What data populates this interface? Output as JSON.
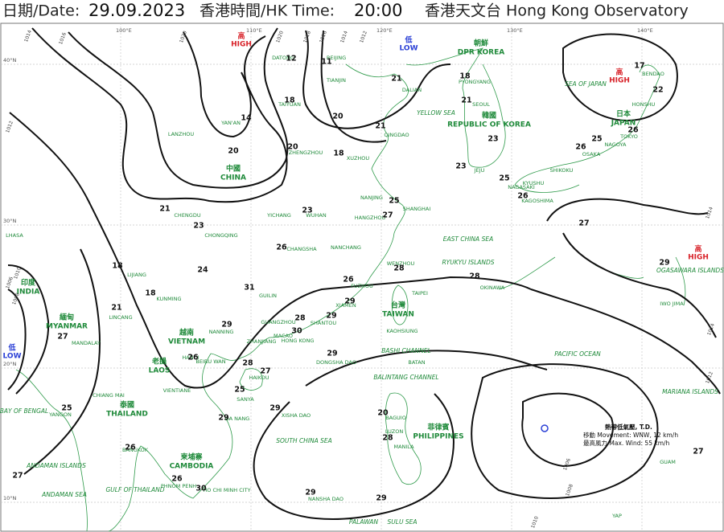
{
  "header": {
    "date_label": "日期/Date:",
    "date": "29.09.2023",
    "time_label": "香港時間/HK Time:",
    "time": "20:00",
    "org": "香港天文台 Hong Kong Observatory"
  },
  "grid": {
    "lat_labels": [
      "40°N",
      "30°N",
      "20°N",
      "10°N"
    ],
    "lon_labels": [
      "100°E",
      "110°E",
      "120°E",
      "130°E",
      "140°E"
    ]
  },
  "pressure_centers": [
    {
      "zh": "高",
      "en": "HIGH"
    },
    {
      "zh": "低",
      "en": "LOW"
    },
    {
      "zh": "高",
      "en": "HIGH"
    },
    {
      "zh": "高",
      "en": "HIGH"
    },
    {
      "zh": "低",
      "en": "LOW"
    }
  ],
  "countries": [
    {
      "zh": "朝鮮",
      "en": "DPR KOREA"
    },
    {
      "zh": "韓國",
      "en": "REPUBLIC OF KOREA"
    },
    {
      "zh": "日本",
      "en": "JAPAN"
    },
    {
      "zh": "中國",
      "en": "CHINA"
    },
    {
      "zh": "印度",
      "en": "INDIA"
    },
    {
      "zh": "緬甸",
      "en": "MYANMAR"
    },
    {
      "zh": "越南",
      "en": "VIETNAM"
    },
    {
      "zh": "老撾",
      "en": "LAOS"
    },
    {
      "zh": "泰國",
      "en": "THAILAND"
    },
    {
      "zh": "柬埔寨",
      "en": "CAMBODIA"
    },
    {
      "zh": "菲律賓",
      "en": "PHILIPPINES"
    },
    {
      "zh": "台灣",
      "en": "TAIWAN"
    }
  ],
  "seas": [
    "SEA OF JAPAN",
    "YELLOW SEA",
    "EAST CHINA SEA",
    "PACIFIC OCEAN",
    "SOUTH CHINA SEA",
    "BAY OF BENGAL",
    "ANDAMAN ISLANDS",
    "ANDAMAN SEA",
    "GULF OF THAILAND",
    "RYUKYU ISLANDS",
    "OGASAWARA ISLANDS",
    "MARIANA ISLANDS",
    "BASHI CHANNEL",
    "BALINTANG CHANNEL",
    "SULU SEA",
    "PALAWAN"
  ],
  "places": [
    "BEIJING",
    "TIANJIN",
    "DATONG",
    "TAIYUAN",
    "YAN'AN",
    "LANZHOU",
    "ZHENGZHOU",
    "XUZHOU",
    "NANJING",
    "SHANGHAI",
    "HANGZHOU",
    "WUHAN",
    "YICHANG",
    "CHENGDU",
    "CHONGQING",
    "CHANGSHA",
    "NANCHANG",
    "GUILIN",
    "KUNMING",
    "FUZHOU",
    "XIAMEN",
    "SHANTOU",
    "GUANGZHOU",
    "HONG KONG",
    "MACAO",
    "ZHANJIANG",
    "DONGSHA DAO",
    "HAIKOU",
    "SANYA",
    "XISHA DAO",
    "NANSHA DAO",
    "DA NANG",
    "VIENTIANE",
    "CHIANG MAI",
    "BANGKOK",
    "PHNOM PENH",
    "HO CHI MINH CITY",
    "YANGON",
    "MANDALAY",
    "DALIAN",
    "QINGDAO",
    "PYONGYANG",
    "SEOUL",
    "JEJU",
    "NAGASAKI",
    "KAGOSHIMA",
    "KYUSHU",
    "SHIKOKU",
    "OSAKA",
    "NAGOYA",
    "TOKYO",
    "HONSHU",
    "BAGUIO",
    "MANILA",
    "LUZON",
    "TAIPEI",
    "KAOHSIUNG",
    "BATAN",
    "LHASA",
    "NANNING",
    "BEIBU WAN",
    "HANOI",
    "LIJIANG",
    "LINCANG",
    "WENZHOU",
    "OKINAWA",
    "IWO JIMA",
    "GUAM",
    "YAP",
    "BENDAO"
  ],
  "temperatures": [
    12,
    11,
    21,
    18,
    18,
    14,
    21,
    20,
    21,
    20,
    20,
    18,
    23,
    26,
    26,
    25,
    23,
    25,
    26,
    17,
    22,
    21,
    23,
    23,
    25,
    27,
    26,
    27,
    18,
    24,
    31,
    18,
    26,
    28,
    28,
    29,
    21,
    29,
    28,
    29,
    30,
    27,
    29,
    29,
    28,
    26,
    27,
    25,
    25,
    29,
    29,
    20,
    28,
    26,
    26,
    30,
    27,
    29,
    29,
    27
  ],
  "isobar_labels": [
    1014,
    1016,
    1020,
    1020,
    1018,
    1016,
    1014,
    1012,
    1012,
    1010,
    1008,
    1006,
    1014,
    1014,
    1012,
    1006,
    1008,
    1010
  ],
  "tropical_depression": {
    "title": "熱帶低氣壓, T.D.",
    "movement": "移動 Movement: WNW, 12 km/h",
    "wind": "最高風力 Max. Wind: 55 km/h"
  }
}
